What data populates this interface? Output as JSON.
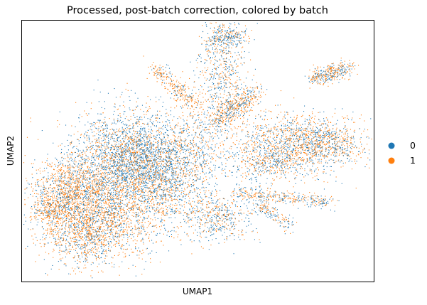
{
  "chart_data": {
    "type": "scatter",
    "title": "Processed, post-batch correction, colored by batch",
    "xlabel": "UMAP1",
    "ylabel": "UMAP2",
    "ticks": "none",
    "grid": false,
    "legend": {
      "placement": "right",
      "entries": [
        {
          "label": "0",
          "color": "#1f77b4"
        },
        {
          "label": "1",
          "color": "#ff7f0e"
        }
      ]
    },
    "series": [
      {
        "name": "0",
        "color": "#1f77b4"
      },
      {
        "name": "1",
        "color": "#ff7f0e"
      }
    ]
  }
}
